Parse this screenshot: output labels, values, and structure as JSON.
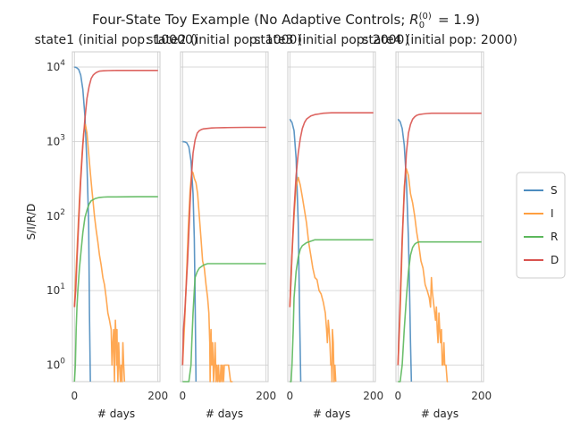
{
  "chart_data": {
    "type": "line",
    "title": "Four-State Toy Example (No Adaptive Controls; R0(0) = 1.9)",
    "ylabel": "S/I/R/D",
    "xlabel": "# days",
    "yscale": "log",
    "ylim": [
      0.6,
      16000
    ],
    "xlim": [
      -5,
      205
    ],
    "xticks": [
      "0",
      "200"
    ],
    "yticks": [
      "10^0",
      "10^1",
      "10^2",
      "10^3",
      "10^4"
    ],
    "grid": true,
    "legend": {
      "placement": "right",
      "entries": [
        "S",
        "I",
        "R",
        "D"
      ]
    },
    "colors": {
      "S": "#4c8cbf",
      "I": "#ff9f40",
      "R": "#5cb85c",
      "D": "#d9534f"
    },
    "panels": [
      {
        "subtitle": "state1 (initial pop: 10000)",
        "series": [
          {
            "name": "S",
            "x": [
              0,
              5,
              10,
              15,
              20,
              25,
              30,
              34,
              36,
              38
            ],
            "y": [
              10000,
              9800,
              9300,
              7800,
              5000,
              2200,
              500,
              80,
              5,
              0.6
            ]
          },
          {
            "name": "I",
            "x": [
              0,
              3,
              8,
              13,
              18,
              22,
              26,
              30,
              34,
              38,
              42,
              45,
              48,
              52,
              56,
              60,
              64,
              68,
              72,
              76,
              80,
              84,
              88,
              90,
              92,
              94,
              95,
              96,
              97,
              98,
              100,
              101,
              102,
              103,
              104,
              106,
              108,
              110,
              112,
              114,
              116,
              118,
              120
            ],
            "y": [
              6,
              15,
              60,
              220,
              650,
              1300,
              1700,
              1300,
              700,
              380,
              220,
              150,
              100,
              65,
              45,
              30,
              22,
              15,
              12,
              8,
              5,
              4,
              3,
              1,
              2,
              3,
              1,
              0.6,
              2,
              4,
              2,
              1,
              3,
              1,
              0.6,
              2,
              1,
              0.6,
              1,
              0.6,
              2,
              1,
              0.6
            ]
          },
          {
            "name": "R",
            "x": [
              0,
              2,
              4,
              6,
              8,
              12,
              16,
              20,
              25,
              30,
              35,
              40,
              50,
              60,
              70,
              80,
              90,
              100,
              150,
              200
            ],
            "y": [
              0.6,
              1,
              3,
              6,
              10,
              20,
              35,
              60,
              95,
              120,
              145,
              160,
              172,
              178,
              180,
              181,
              181,
              181,
              182,
              182
            ]
          },
          {
            "name": "D",
            "x": [
              0,
              3,
              6,
              10,
              15,
              20,
              25,
              30,
              35,
              40,
              45,
              50,
              55,
              60,
              70,
              80,
              100,
              150,
              200
            ],
            "y": [
              6,
              10,
              25,
              80,
              300,
              900,
              2000,
              3800,
              5500,
              7000,
              7800,
              8300,
              8600,
              8800,
              8900,
              8950,
              9000,
              9000,
              9000
            ]
          }
        ]
      },
      {
        "subtitle": "state2 (initial pop: 1000)",
        "series": [
          {
            "name": "S",
            "x": [
              0,
              5,
              10,
              15,
              20,
              25,
              28,
              30,
              32
            ],
            "y": [
              1000,
              990,
              960,
              850,
              550,
              200,
              50,
              8,
              0.6
            ]
          },
          {
            "name": "I",
            "x": [
              0,
              5,
              10,
              14,
              18,
              22,
              25,
              28,
              32,
              36,
              40,
              44,
              48,
              52,
              56,
              60,
              63,
              65,
              66,
              68,
              70,
              72,
              74,
              76,
              78,
              80,
              82,
              84,
              86,
              88,
              90,
              92,
              94,
              96,
              98,
              100,
              105,
              110,
              115,
              120
            ],
            "y": [
              1,
              4,
              20,
              80,
              220,
              400,
              380,
              320,
              280,
              200,
              100,
              50,
              25,
              20,
              12,
              8,
              5,
              2,
              0.6,
              3,
              1,
              2,
              0.6,
              1,
              2,
              0.6,
              1,
              0.6,
              1,
              0.6,
              0.6,
              1,
              0.6,
              1,
              0.6,
              1,
              1,
              1,
              0.6,
              0.6
            ]
          },
          {
            "name": "R",
            "x": [
              0,
              5,
              10,
              15,
              20,
              22,
              25,
              28,
              30,
              35,
              40,
              50,
              60,
              80,
              100,
              150,
              200
            ],
            "y": [
              0.6,
              0.6,
              0.6,
              0.6,
              1,
              2,
              5,
              10,
              15,
              18,
              20,
              22,
              23,
              23,
              23,
              23,
              23
            ]
          },
          {
            "name": "D",
            "x": [
              0,
              2,
              5,
              8,
              12,
              15,
              18,
              22,
              25,
              30,
              35,
              40,
              45,
              50,
              60,
              70,
              80,
              100,
              150,
              200
            ],
            "y": [
              1,
              3,
              5,
              10,
              25,
              60,
              150,
              400,
              700,
              1050,
              1300,
              1400,
              1450,
              1480,
              1500,
              1520,
              1530,
              1540,
              1550,
              1550
            ]
          }
        ]
      },
      {
        "subtitle": "state3 (initial pop: 2000)",
        "series": [
          {
            "name": "S",
            "x": [
              0,
              5,
              10,
              15,
              20,
              22,
              24,
              26
            ],
            "y": [
              2000,
              1800,
              1400,
              600,
              80,
              15,
              3,
              0.6
            ]
          },
          {
            "name": "I",
            "x": [
              0,
              5,
              10,
              15,
              20,
              25,
              30,
              35,
              40,
              45,
              50,
              55,
              60,
              65,
              70,
              75,
              80,
              85,
              88,
              90,
              92,
              94,
              96,
              98,
              100,
              101,
              102,
              104,
              106,
              108,
              110
            ],
            "y": [
              6,
              30,
              100,
              250,
              330,
              260,
              180,
              120,
              80,
              45,
              30,
              20,
              15,
              14,
              10,
              9,
              7,
              5,
              3,
              2,
              4,
              3,
              2,
              1,
              1,
              0.6,
              3,
              2,
              0.6,
              1,
              0.6
            ]
          },
          {
            "name": "R",
            "x": [
              0,
              3,
              5,
              8,
              10,
              15,
              20,
              25,
              30,
              35,
              40,
              45,
              50,
              55,
              60,
              80,
              100,
              150,
              200
            ],
            "y": [
              0.6,
              0.6,
              1,
              3,
              8,
              18,
              28,
              36,
              40,
              42,
              44,
              45,
              46,
              47,
              48,
              48,
              48,
              48,
              48
            ]
          },
          {
            "name": "D",
            "x": [
              0,
              3,
              6,
              10,
              15,
              20,
              25,
              30,
              35,
              40,
              45,
              50,
              60,
              70,
              80,
              90,
              100,
              150,
              200
            ],
            "y": [
              6,
              15,
              40,
              120,
              350,
              700,
              1100,
              1500,
              1800,
              2000,
              2100,
              2200,
              2300,
              2350,
              2400,
              2420,
              2430,
              2430,
              2430
            ]
          }
        ]
      },
      {
        "subtitle": "state4 (initial pop: 2000)",
        "series": [
          {
            "name": "S",
            "x": [
              0,
              5,
              10,
              15,
              20,
              25,
              28,
              30,
              32
            ],
            "y": [
              2000,
              1850,
              1500,
              900,
              300,
              50,
              8,
              2,
              0.6
            ]
          },
          {
            "name": "I",
            "x": [
              0,
              5,
              10,
              15,
              20,
              25,
              30,
              35,
              40,
              45,
              50,
              55,
              60,
              65,
              70,
              75,
              78,
              80,
              82,
              85,
              88,
              90,
              92,
              94,
              96,
              98,
              100,
              102,
              104,
              106,
              108,
              110,
              112,
              115,
              118,
              120
            ],
            "y": [
              1,
              5,
              40,
              250,
              430,
              350,
              200,
              150,
              100,
              60,
              40,
              25,
              20,
              12,
              10,
              8,
              6,
              15,
              10,
              7,
              5,
              4,
              6,
              3,
              2,
              5,
              3,
              2,
              3,
              1,
              1,
              2,
              1,
              1,
              0.6,
              0.6
            ]
          },
          {
            "name": "R",
            "x": [
              0,
              5,
              10,
              15,
              20,
              25,
              30,
              35,
              40,
              45,
              50,
              60,
              80,
              100,
              150,
              200
            ],
            "y": [
              0.6,
              0.6,
              1,
              3,
              8,
              18,
              30,
              38,
              42,
              44,
              45,
              45,
              45,
              45,
              45,
              45
            ]
          },
          {
            "name": "D",
            "x": [
              0,
              3,
              6,
              10,
              15,
              20,
              25,
              30,
              35,
              40,
              45,
              50,
              60,
              70,
              80,
              100,
              150,
              200
            ],
            "y": [
              1,
              3,
              10,
              50,
              200,
              700,
              1300,
              1700,
              2000,
              2150,
              2250,
              2300,
              2350,
              2380,
              2400,
              2400,
              2400,
              2400
            ]
          }
        ]
      }
    ]
  }
}
